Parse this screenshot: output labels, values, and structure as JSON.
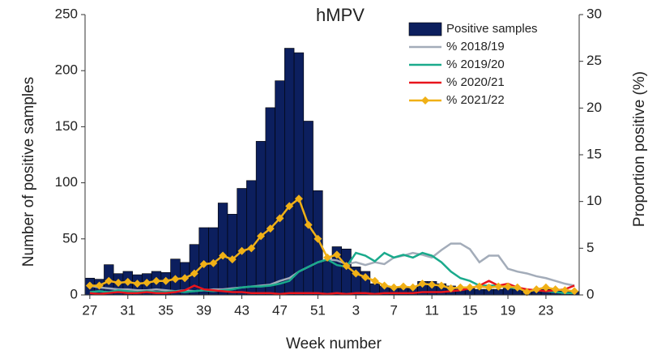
{
  "chart_data": {
    "type": "bar",
    "title": "hMPV",
    "xlabel": "Week number",
    "ylabel": "Number of positive samples",
    "y2label": "Proportion positive (%)",
    "categories": [
      "27",
      null,
      null,
      null,
      "31",
      null,
      null,
      null,
      "35",
      null,
      null,
      null,
      "39",
      null,
      null,
      null,
      "43",
      null,
      null,
      null,
      "47",
      null,
      null,
      null,
      "51",
      null,
      null,
      null,
      "3",
      null,
      null,
      null,
      "7",
      null,
      null,
      null,
      "11",
      null,
      null,
      null,
      "15",
      null,
      null,
      null,
      "19",
      null,
      null,
      null,
      "23",
      null,
      null,
      null
    ],
    "series": [
      {
        "name": "Positive samples",
        "type": "bar",
        "color": "#0c1f5e",
        "values": [
          15,
          14,
          27,
          19,
          21,
          18,
          19,
          21,
          20,
          32,
          29,
          45,
          60,
          60,
          82,
          72,
          95,
          102,
          137,
          167,
          191,
          220,
          216,
          155,
          93,
          30,
          43,
          41,
          25,
          21,
          10,
          8,
          6,
          6,
          7,
          12,
          12,
          10,
          8,
          6,
          6,
          5,
          5,
          5,
          6,
          5,
          4,
          4,
          5,
          5,
          4,
          3
        ]
      },
      {
        "name": "% 2018/19",
        "type": "line",
        "axis": "y2",
        "color": "#a3acb9",
        "values": [
          1.0,
          0.8,
          0.7,
          0.6,
          0.6,
          0.5,
          0.5,
          0.6,
          0.5,
          0.4,
          0.5,
          0.4,
          0.5,
          0.6,
          0.6,
          0.7,
          0.8,
          0.9,
          1.0,
          1.1,
          1.5,
          1.8,
          2.5,
          3.0,
          3.5,
          3.8,
          3.7,
          3.3,
          3.5,
          3.2,
          3.5,
          3.3,
          4.0,
          4.2,
          4.5,
          4.3,
          4.0,
          4.8,
          5.5,
          5.5,
          4.9,
          3.5,
          4.2,
          4.2,
          2.8,
          2.5,
          2.3,
          2.0,
          1.8,
          1.5,
          1.2,
          1.0
        ]
      },
      {
        "name": "% 2019/20",
        "type": "line",
        "axis": "y2",
        "color": "#1aaa8c",
        "values": [
          0.3,
          0.4,
          0.3,
          0.5,
          0.4,
          0.3,
          0.4,
          0.3,
          0.3,
          0.4,
          0.3,
          0.4,
          0.5,
          0.4,
          0.5,
          0.6,
          0.8,
          0.9,
          0.9,
          1.0,
          1.2,
          1.5,
          2.5,
          3.0,
          3.5,
          3.8,
          3.2,
          3.0,
          4.5,
          4.2,
          3.6,
          4.5,
          4.0,
          4.3,
          4.0,
          4.5,
          4.2,
          3.5,
          2.5,
          1.8,
          1.5,
          1.0,
          1.0,
          1.0,
          0.8,
          0.7,
          0.5,
          0.5,
          0.4,
          0.3,
          0.2,
          0.2
        ]
      },
      {
        "name": "% 2020/21",
        "type": "line",
        "axis": "y2",
        "color": "#e8141c",
        "values": [
          0.2,
          0.1,
          0.2,
          0.3,
          0.2,
          0.2,
          0.3,
          0.2,
          0.2,
          0.3,
          0.5,
          1.0,
          0.6,
          0.5,
          0.4,
          0.3,
          0.3,
          0.2,
          0.2,
          0.2,
          0.1,
          0.2,
          0.2,
          0.2,
          0.2,
          0.1,
          0.2,
          0.1,
          0.2,
          0.2,
          0.1,
          0.2,
          0.2,
          0.2,
          0.2,
          0.3,
          0.3,
          0.3,
          0.4,
          0.5,
          0.7,
          1.0,
          1.5,
          1.0,
          1.2,
          0.8,
          0.6,
          0.5,
          0.4,
          0.5,
          0.6,
          1.0
        ]
      },
      {
        "name": "% 2021/22",
        "type": "line",
        "axis": "y2",
        "color": "#f0b016",
        "marker": "diamond",
        "values": [
          1.0,
          1.0,
          1.5,
          1.3,
          1.4,
          1.2,
          1.3,
          1.5,
          1.5,
          1.7,
          1.8,
          2.3,
          3.3,
          3.4,
          4.2,
          3.8,
          4.7,
          5.0,
          6.3,
          7.1,
          8.2,
          9.5,
          10.3,
          7.5,
          6.0,
          4.0,
          4.3,
          3.1,
          2.3,
          1.9,
          1.5,
          1.0,
          0.8,
          0.9,
          0.8,
          1.2,
          1.1,
          1.0,
          0.7,
          0.8,
          0.8,
          0.9,
          0.8,
          0.9,
          0.9,
          0.8,
          0.3,
          0.6,
          0.8,
          0.6,
          0.5,
          0.4
        ]
      }
    ],
    "ylim": [
      0,
      250
    ],
    "yticks": [
      0,
      50,
      100,
      150,
      200,
      250
    ],
    "y2lim": [
      0,
      30
    ],
    "y2ticks": [
      0,
      5,
      10,
      15,
      20,
      25,
      30
    ],
    "legend": "upper right"
  }
}
